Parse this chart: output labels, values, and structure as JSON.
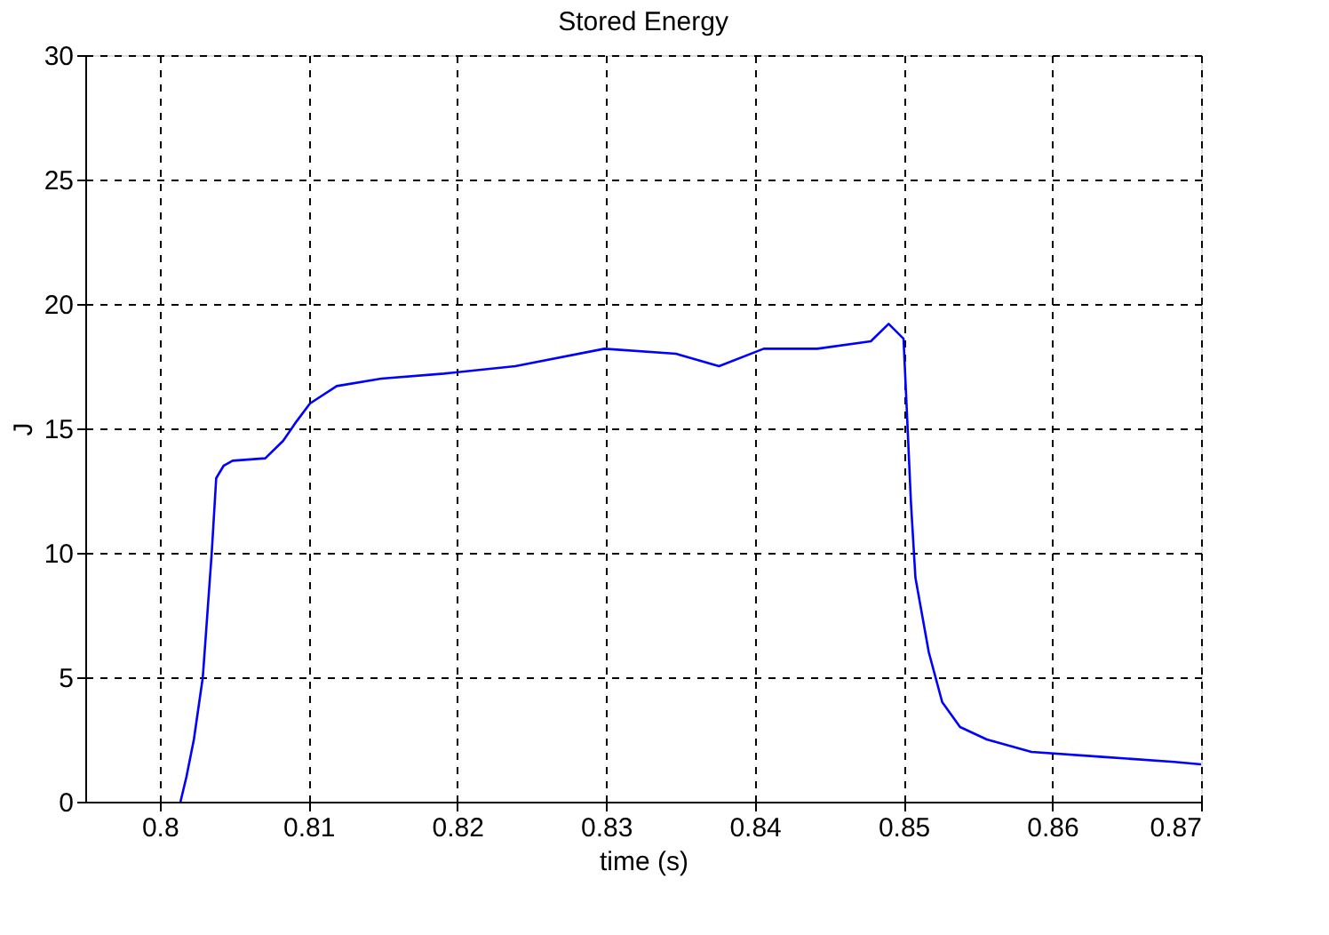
{
  "chart_data": {
    "type": "line",
    "title": "Stored Energy",
    "xlabel": "time (s)",
    "ylabel": "J",
    "xlim": [
      0.795,
      0.87
    ],
    "xticks": [
      0.8,
      0.81,
      0.82,
      0.83,
      0.84,
      0.85,
      0.86,
      0.87
    ],
    "ylim": [
      0,
      30
    ],
    "yticks": [
      0,
      5,
      10,
      15,
      20,
      25,
      30
    ],
    "grid": true,
    "line_style": "solid",
    "marker": "none",
    "series": [
      {
        "color": "#0000ff",
        "x": [
          0.8014,
          0.8018,
          0.8023,
          0.8029,
          0.8032,
          0.8035,
          0.8038,
          0.8043,
          0.8049,
          0.8071,
          0.8083,
          0.8091,
          0.8101,
          0.8119,
          0.8149,
          0.8191,
          0.8239,
          0.8299,
          0.8347,
          0.8376,
          0.8406,
          0.8442,
          0.8478,
          0.849,
          0.85,
          0.8502,
          0.8505,
          0.8508,
          0.8517,
          0.8526,
          0.8538,
          0.8556,
          0.8586,
          0.8634,
          0.8682,
          0.87
        ],
        "values": [
          0,
          1,
          2.5,
          5,
          7.5,
          10,
          13,
          13.5,
          13.7,
          13.8,
          14.5,
          15.2,
          16,
          16.7,
          17,
          17.2,
          17.5,
          18.2,
          18,
          17.5,
          18.2,
          18.2,
          18.5,
          19.2,
          18.6,
          16,
          12,
          9,
          6,
          4,
          3,
          2.5,
          2,
          1.8,
          1.6,
          1.5
        ]
      }
    ]
  }
}
